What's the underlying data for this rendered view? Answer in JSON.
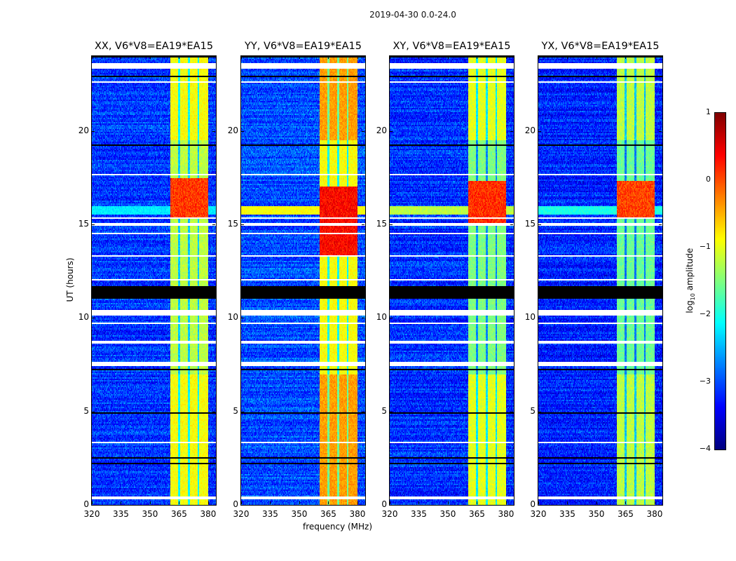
{
  "chart_data": {
    "type": "heatmap",
    "title": "2019-04-30 0.0-24.0",
    "xlabel": "frequency (MHz)",
    "ylabel": "UT (hours)",
    "xlim": [
      320,
      384
    ],
    "ylim": [
      0,
      24
    ],
    "xticks": [
      "320",
      "335",
      "350",
      "365",
      "380"
    ],
    "yticks": [
      "0",
      "5",
      "10",
      "15",
      "20"
    ],
    "colorbar": {
      "label": "log10 amplitude",
      "label_main": "log",
      "label_sub": "10",
      "label_rest": " amplitude",
      "range": [
        -4,
        1
      ],
      "ticks": [
        "1",
        "0",
        "−1",
        "−2",
        "−3",
        "−4"
      ],
      "colormap": "jet"
    },
    "band_mhz": [
      360.5,
      380
    ],
    "band_gaps_mhz": [
      365,
      370,
      375
    ],
    "flagged_white_hours": [
      [
        23.3,
        23.6
      ],
      [
        22.6,
        22.65
      ],
      [
        20.9,
        20.95
      ],
      [
        19.7,
        19.75
      ],
      [
        17.9,
        17.95
      ],
      [
        17.65,
        17.7
      ],
      [
        15.3,
        15.35
      ],
      [
        14.9,
        15.05
      ],
      [
        14.5,
        14.55
      ],
      [
        13.3,
        13.35
      ],
      [
        12.5,
        12.55
      ],
      [
        12.0,
        12.05
      ],
      [
        10.15,
        10.45
      ],
      [
        9.7,
        9.75
      ],
      [
        8.6,
        8.75
      ],
      [
        7.4,
        7.65
      ],
      [
        6.5,
        6.55
      ],
      [
        3.3,
        3.4
      ],
      [
        2.0,
        2.05
      ],
      [
        1.4,
        1.45
      ],
      [
        0.3,
        0.45
      ]
    ],
    "flagged_black_hours": [
      [
        23.95,
        24
      ],
      [
        22.9,
        22.95
      ],
      [
        19.2,
        19.3
      ],
      [
        17.75,
        17.8
      ],
      [
        11.0,
        11.7
      ],
      [
        9.5,
        9.55
      ],
      [
        7.2,
        7.3
      ],
      [
        4.9,
        4.95
      ],
      [
        2.5,
        2.55
      ],
      [
        2.2,
        2.25
      ]
    ],
    "panels": [
      {
        "title": "XX, V6*V8=EA19*EA15",
        "background": -3.1,
        "band": -1.2,
        "band_high": -0.9,
        "rfi_hours": [
          15.3,
          17.5
        ],
        "rfi_level": 0.1,
        "rfi_broadband": -2.2
      },
      {
        "title": "YY, V6*V8=EA19*EA15",
        "background": -3.0,
        "band": -0.9,
        "band_high": -0.4,
        "rfi_hours": [
          13.3,
          17.0
        ],
        "rfi_level": 0.35,
        "rfi_broadband": -0.9
      },
      {
        "title": "XY, V6*V8=EA19*EA15",
        "background": -3.15,
        "band": -1.5,
        "band_high": -1.0,
        "rfi_hours": [
          15.0,
          17.3
        ],
        "rfi_level": 0.15,
        "rfi_broadband": -1.2
      },
      {
        "title": "YX, V6*V8=EA19*EA15",
        "background": -3.2,
        "band": -1.6,
        "band_high": -1.2,
        "rfi_hours": [
          15.3,
          17.3
        ],
        "rfi_level": 0.05,
        "rfi_broadband": -2.0
      }
    ]
  }
}
